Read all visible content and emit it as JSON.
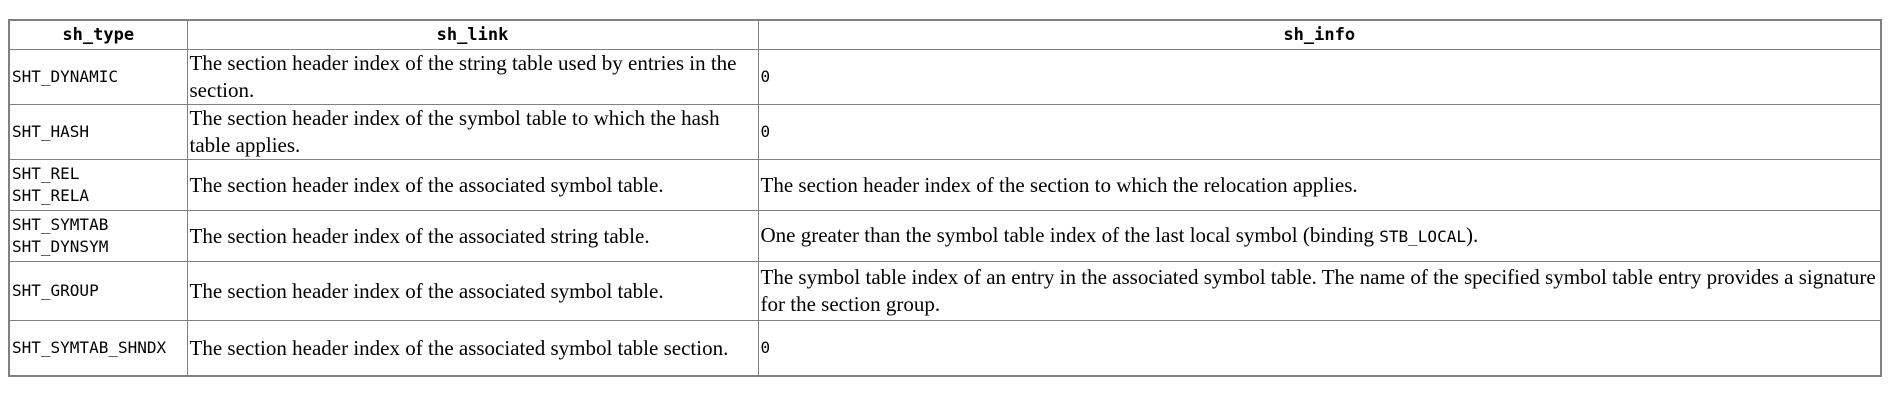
{
  "table": {
    "headers": {
      "sh_type": "sh_type",
      "sh_link": "sh_link",
      "sh_info": "sh_info"
    },
    "rows": [
      {
        "types": [
          "SHT_DYNAMIC"
        ],
        "link": "The section header index of the string table used by entries in the section.",
        "info": "0"
      },
      {
        "types": [
          "SHT_HASH"
        ],
        "link": "The section header index of the symbol table to which the hash table applies.",
        "info": "0"
      },
      {
        "types": [
          "SHT_REL",
          "SHT_RELA"
        ],
        "link": "The section header index of the associated symbol table.",
        "info": "The section header index of the section to which the relocation applies."
      },
      {
        "types": [
          "SHT_SYMTAB",
          "SHT_DYNSYM"
        ],
        "link": "The section header index of the associated string table.",
        "info_prefix": "One greater than the symbol table index of the last local symbol (binding ",
        "info_code": "STB_LOCAL",
        "info_suffix": ")."
      },
      {
        "types": [
          "SHT_GROUP"
        ],
        "link": "The section header index of the associated symbol table.",
        "info": "The symbol table index of an entry in the associated symbol table. The name of the specified symbol table entry provides a signature for the section group."
      },
      {
        "types": [
          "SHT_SYMTAB_SHNDX"
        ],
        "link": "The section header index of the associated symbol table section.",
        "info": "0"
      }
    ]
  }
}
